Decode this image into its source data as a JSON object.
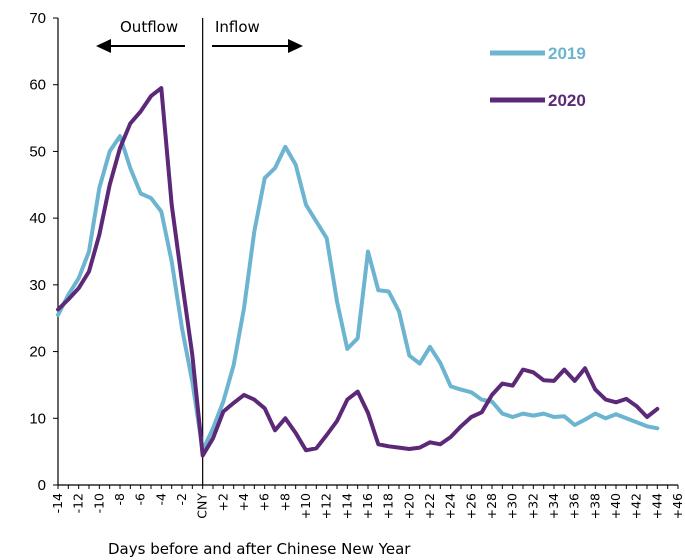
{
  "chart_data": {
    "type": "line",
    "xlabel": "Days before and after Chinese New Year",
    "ylabel": "",
    "ylim": [
      0,
      70
    ],
    "yticks": [
      0,
      10,
      20,
      30,
      40,
      50,
      60,
      70
    ],
    "xlim": [
      -14,
      46
    ],
    "xtick_labels": [
      "-14",
      "-12",
      "-10",
      "-8",
      "-6",
      "-4",
      "-2",
      "CNY",
      "+2",
      "+4",
      "+6",
      "+8",
      "+10",
      "+12",
      "+14",
      "+16",
      "+18",
      "+20",
      "+22",
      "+24",
      "+26",
      "+28",
      "+30",
      "+32",
      "+34",
      "+36",
      "+38",
      "+40",
      "+42",
      "+44",
      "+46"
    ],
    "annotations": {
      "outflow": "Outflow",
      "inflow": "Inflow"
    },
    "legend_position": "top-right",
    "series": [
      {
        "name": "2019",
        "color": "#6cb4cf",
        "x": [
          -14,
          -13,
          -12,
          -11,
          -10,
          -9,
          -8,
          -7,
          -6,
          -5,
          -4,
          -3,
          -2,
          -1,
          0,
          1,
          2,
          3,
          4,
          5,
          6,
          7,
          8,
          9,
          10,
          11,
          12,
          13,
          14,
          15,
          16,
          17,
          18,
          19,
          20,
          21,
          22,
          23,
          24,
          25,
          26,
          27,
          28,
          29,
          30,
          31,
          32,
          33,
          34,
          35,
          36,
          37,
          38,
          39,
          40,
          41,
          42,
          43,
          44
        ],
        "values": [
          25.5,
          28.5,
          31,
          35,
          44.5,
          50,
          52.3,
          47.5,
          43.7,
          43,
          41,
          33.5,
          23.5,
          15.5,
          5.2,
          8.5,
          12.5,
          18,
          26.5,
          38,
          46,
          47.5,
          50.7,
          48,
          42,
          39.5,
          37,
          27.5,
          20.4,
          22,
          35,
          29.2,
          29,
          26,
          19.4,
          18.2,
          20.7,
          18.3,
          14.8,
          14.3,
          13.9,
          12.8,
          12.5,
          10.7,
          10.2,
          10.7,
          10.4,
          10.7,
          10.2,
          10.3,
          9,
          9.8,
          10.7,
          10,
          10.6,
          10,
          9.4,
          8.8,
          8.5
        ]
      },
      {
        "name": "2020",
        "color": "#5c2878",
        "x": [
          -14,
          -13,
          -12,
          -11,
          -10,
          -9,
          -8,
          -7,
          -6,
          -5,
          -4,
          -3,
          -2,
          -1,
          0,
          1,
          2,
          3,
          4,
          5,
          6,
          7,
          8,
          9,
          10,
          11,
          12,
          13,
          14,
          15,
          16,
          17,
          18,
          19,
          20,
          21,
          22,
          23,
          24,
          25,
          26,
          27,
          28,
          29,
          30,
          31,
          32,
          33,
          34,
          35,
          36,
          37,
          38,
          39,
          40,
          41,
          42,
          43,
          44
        ],
        "values": [
          26.3,
          27.8,
          29.5,
          32,
          37.5,
          45,
          50.5,
          54.2,
          56,
          58.3,
          59.5,
          42,
          30.5,
          19.5,
          4.4,
          7,
          11,
          12.3,
          13.5,
          12.8,
          11.5,
          8.2,
          10,
          7.8,
          5.2,
          5.5,
          7.5,
          9.6,
          12.8,
          14,
          10.8,
          6.1,
          5.8,
          5.6,
          5.4,
          5.6,
          6.4,
          6.1,
          7.2,
          8.8,
          10.2,
          10.9,
          13.5,
          15.2,
          14.9,
          17.3,
          16.9,
          15.7,
          15.6,
          17.3,
          15.6,
          17.5,
          14.3,
          12.8,
          12.4,
          12.9,
          11.8,
          10.2,
          11.4
        ]
      }
    ]
  }
}
